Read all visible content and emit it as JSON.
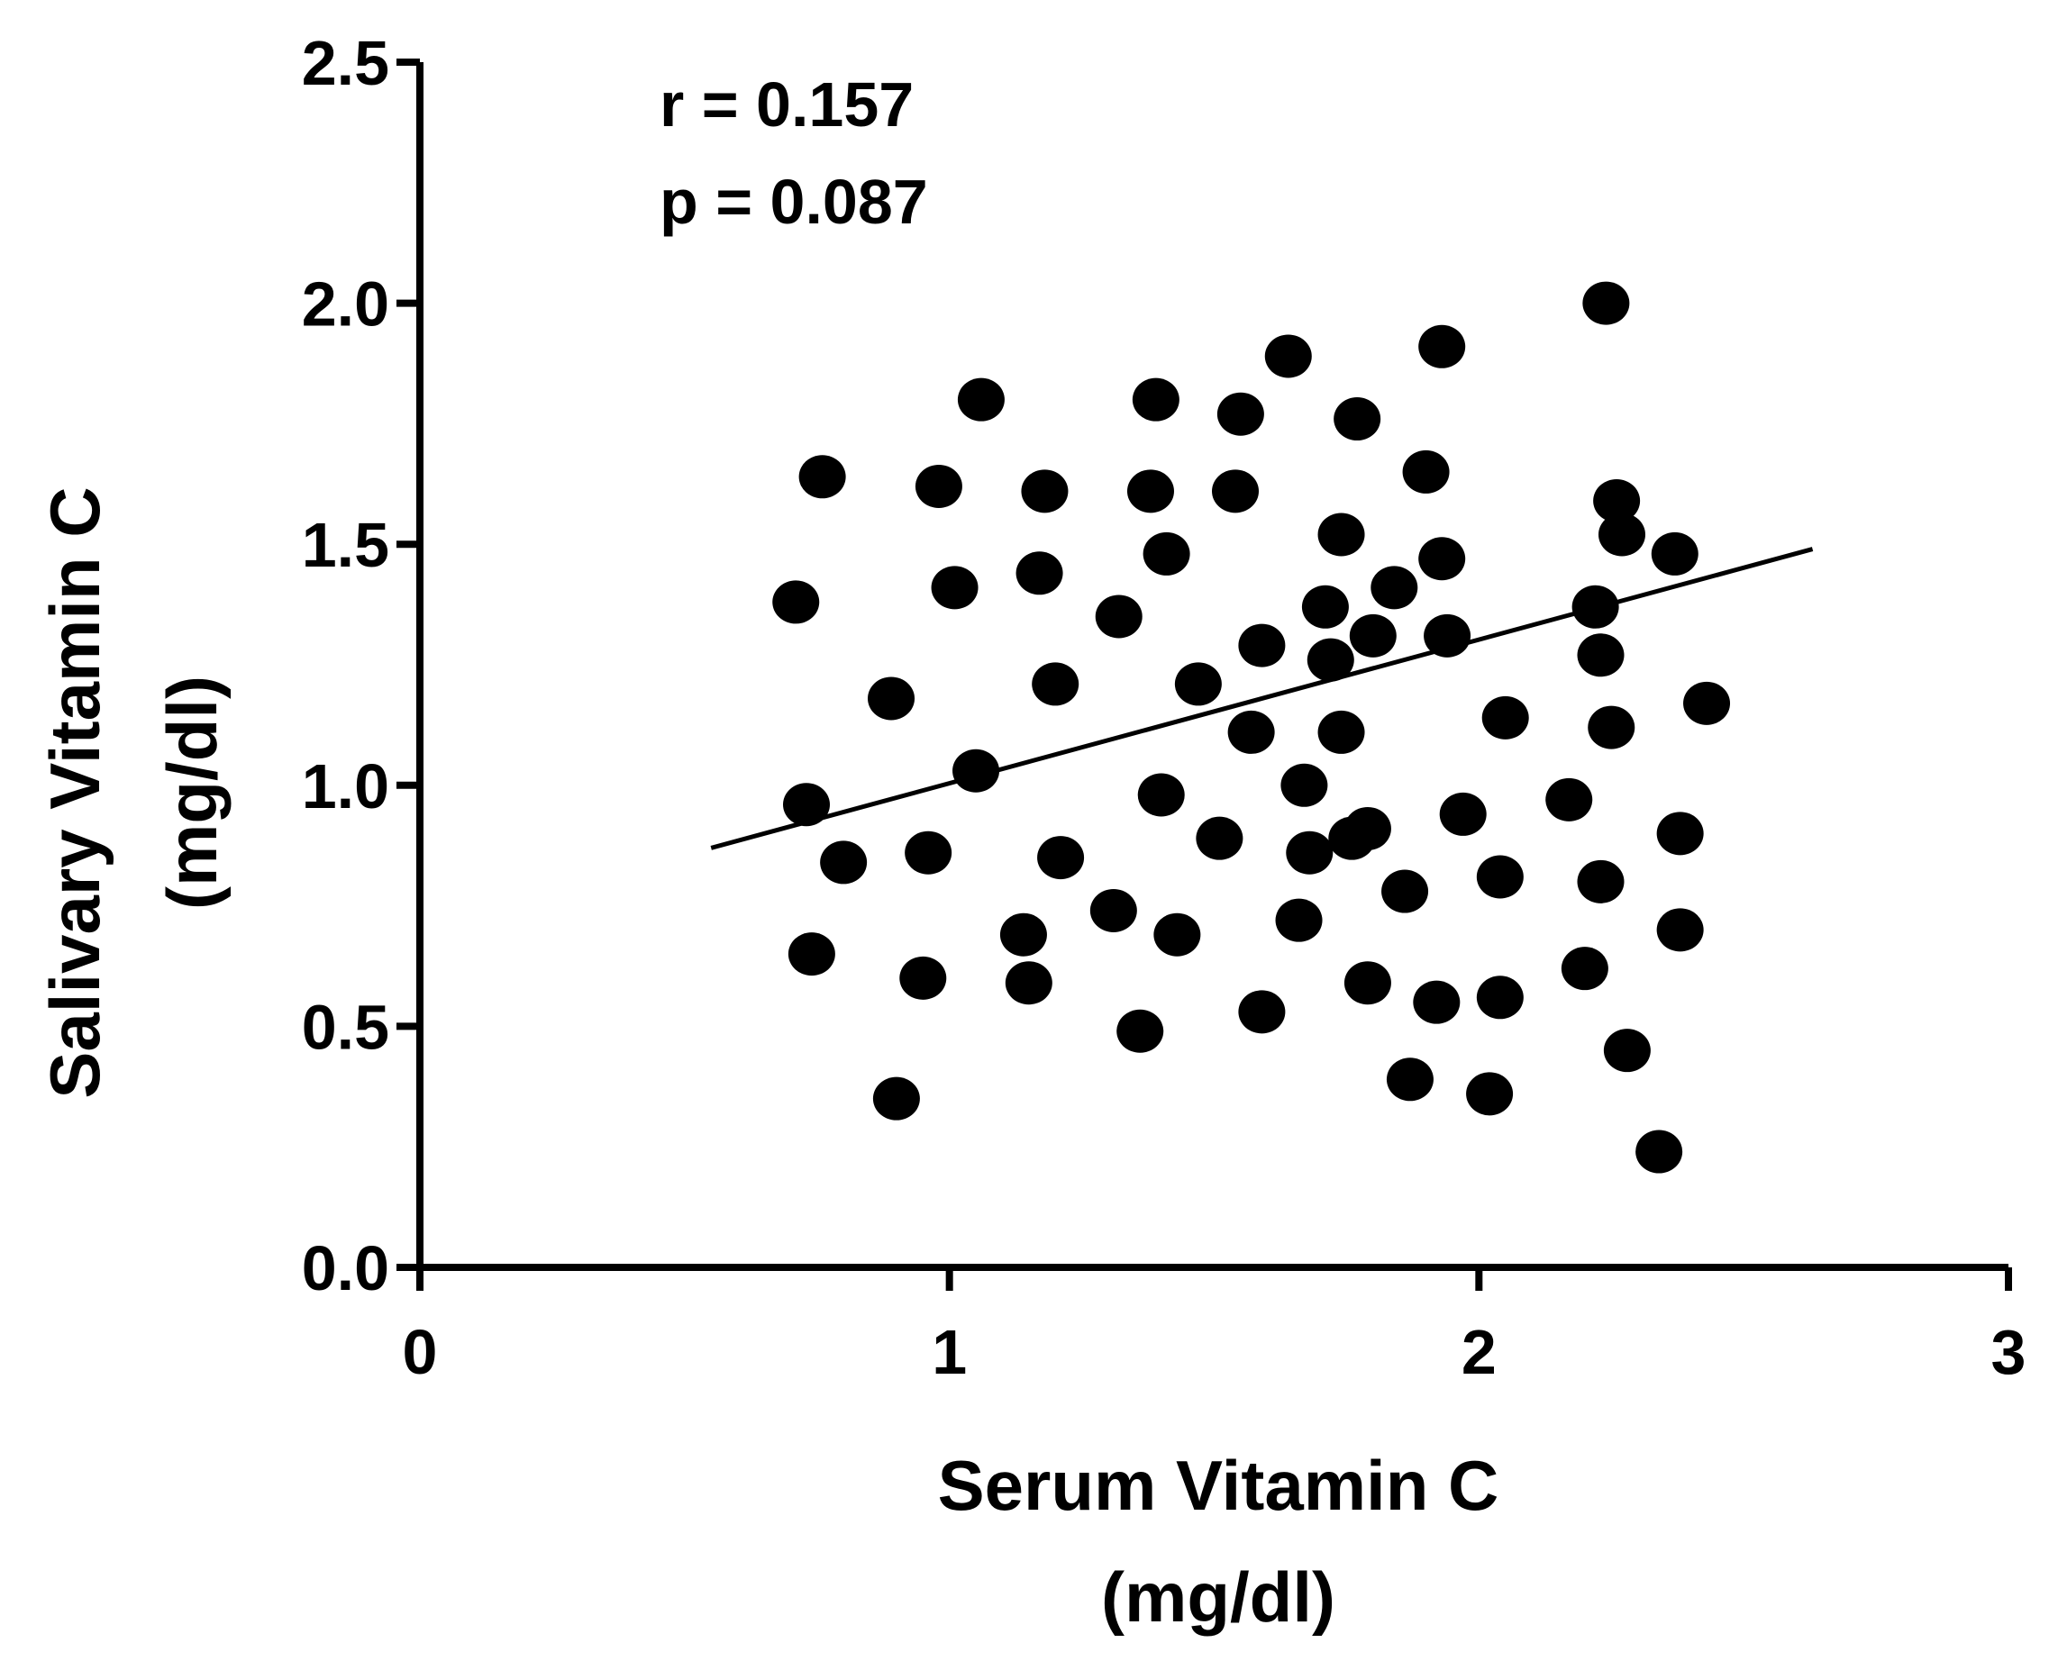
{
  "chart_data": {
    "type": "scatter",
    "xlabel": [
      "Serum Vitamin C",
      "(mg/dl)"
    ],
    "ylabel": [
      "Salivary Vitamin C",
      "(mg/dl)"
    ],
    "xlim": [
      0,
      3
    ],
    "ylim": [
      0,
      2.5
    ],
    "xticks": [
      "0",
      "1",
      "2",
      "3"
    ],
    "yticks": [
      "0.0",
      "0.5",
      "1.0",
      "1.5",
      "2.0",
      "2.5"
    ],
    "annotations": [
      "r = 0.157",
      "p = 0.087"
    ],
    "grid": false,
    "regression_line": {
      "x": [
        0.55,
        2.63
      ],
      "y": [
        0.87,
        1.49
      ]
    },
    "points": [
      {
        "x": 0.71,
        "y": 1.38
      },
      {
        "x": 0.76,
        "y": 1.64
      },
      {
        "x": 0.73,
        "y": 0.96
      },
      {
        "x": 0.8,
        "y": 0.84
      },
      {
        "x": 0.74,
        "y": 0.65
      },
      {
        "x": 0.89,
        "y": 1.18
      },
      {
        "x": 0.9,
        "y": 0.35
      },
      {
        "x": 0.95,
        "y": 0.6
      },
      {
        "x": 0.96,
        "y": 0.86
      },
      {
        "x": 0.98,
        "y": 1.62
      },
      {
        "x": 1.01,
        "y": 1.41
      },
      {
        "x": 1.05,
        "y": 1.03
      },
      {
        "x": 1.06,
        "y": 1.8
      },
      {
        "x": 1.14,
        "y": 0.69
      },
      {
        "x": 1.15,
        "y": 0.59
      },
      {
        "x": 1.17,
        "y": 1.44
      },
      {
        "x": 1.18,
        "y": 1.61
      },
      {
        "x": 1.2,
        "y": 1.21
      },
      {
        "x": 1.21,
        "y": 0.85
      },
      {
        "x": 1.31,
        "y": 0.74
      },
      {
        "x": 1.32,
        "y": 1.35
      },
      {
        "x": 1.36,
        "y": 0.49
      },
      {
        "x": 1.38,
        "y": 1.61
      },
      {
        "x": 1.39,
        "y": 1.8
      },
      {
        "x": 1.4,
        "y": 0.98
      },
      {
        "x": 1.41,
        "y": 1.48
      },
      {
        "x": 1.43,
        "y": 0.69
      },
      {
        "x": 1.47,
        "y": 1.21
      },
      {
        "x": 1.51,
        "y": 0.89
      },
      {
        "x": 1.54,
        "y": 1.61
      },
      {
        "x": 1.55,
        "y": 1.77
      },
      {
        "x": 1.57,
        "y": 1.11
      },
      {
        "x": 1.59,
        "y": 0.53
      },
      {
        "x": 1.59,
        "y": 1.29
      },
      {
        "x": 1.64,
        "y": 1.89
      },
      {
        "x": 1.66,
        "y": 0.72
      },
      {
        "x": 1.67,
        "y": 1.0
      },
      {
        "x": 1.68,
        "y": 0.86
      },
      {
        "x": 1.71,
        "y": 1.37
      },
      {
        "x": 1.72,
        "y": 1.26
      },
      {
        "x": 1.74,
        "y": 1.11
      },
      {
        "x": 1.74,
        "y": 1.52
      },
      {
        "x": 1.76,
        "y": 0.89
      },
      {
        "x": 1.77,
        "y": 1.76
      },
      {
        "x": 1.79,
        "y": 0.91
      },
      {
        "x": 1.79,
        "y": 0.59
      },
      {
        "x": 1.8,
        "y": 1.31
      },
      {
        "x": 1.84,
        "y": 1.41
      },
      {
        "x": 1.86,
        "y": 0.78
      },
      {
        "x": 1.87,
        "y": 0.39
      },
      {
        "x": 1.9,
        "y": 1.65
      },
      {
        "x": 1.92,
        "y": 0.55
      },
      {
        "x": 1.93,
        "y": 1.91
      },
      {
        "x": 1.93,
        "y": 1.47
      },
      {
        "x": 1.94,
        "y": 1.31
      },
      {
        "x": 1.97,
        "y": 0.94
      },
      {
        "x": 2.02,
        "y": 0.36
      },
      {
        "x": 2.04,
        "y": 0.56
      },
      {
        "x": 2.04,
        "y": 0.81
      },
      {
        "x": 2.05,
        "y": 1.14
      },
      {
        "x": 2.17,
        "y": 0.97
      },
      {
        "x": 2.2,
        "y": 0.62
      },
      {
        "x": 2.22,
        "y": 1.37
      },
      {
        "x": 2.23,
        "y": 1.27
      },
      {
        "x": 2.23,
        "y": 0.8
      },
      {
        "x": 2.24,
        "y": 2.0
      },
      {
        "x": 2.25,
        "y": 1.12
      },
      {
        "x": 2.26,
        "y": 1.59
      },
      {
        "x": 2.27,
        "y": 1.52
      },
      {
        "x": 2.28,
        "y": 0.45
      },
      {
        "x": 2.34,
        "y": 0.24
      },
      {
        "x": 2.37,
        "y": 1.48
      },
      {
        "x": 2.38,
        "y": 0.9
      },
      {
        "x": 2.38,
        "y": 0.7
      },
      {
        "x": 2.43,
        "y": 1.17
      }
    ]
  }
}
